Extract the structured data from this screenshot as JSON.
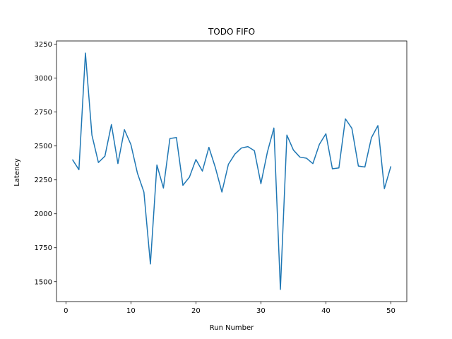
{
  "chart_data": {
    "type": "line",
    "title": "TODO FIFO",
    "xlabel": "Run Number",
    "ylabel": "Latency",
    "xlim": [
      -1.45,
      52.45
    ],
    "ylim": [
      1353,
      3274
    ],
    "xticks": [
      0,
      10,
      20,
      30,
      40,
      50
    ],
    "yticks": [
      1500,
      1750,
      2000,
      2250,
      2500,
      2750,
      3000,
      3250
    ],
    "grid": false,
    "legend": "none",
    "series": [
      {
        "color": "#1f77b4",
        "x": [
          1,
          2,
          3,
          4,
          5,
          6,
          7,
          8,
          9,
          10,
          11,
          12,
          13,
          14,
          15,
          16,
          17,
          18,
          19,
          20,
          21,
          22,
          23,
          24,
          25,
          26,
          27,
          28,
          29,
          30,
          31,
          32,
          33,
          34,
          35,
          36,
          37,
          38,
          39,
          40,
          41,
          42,
          43,
          44,
          45,
          46,
          47,
          48,
          49,
          50
        ],
        "values": [
          2400,
          2325,
          3185,
          2580,
          2378,
          2425,
          2658,
          2370,
          2620,
          2510,
          2300,
          2160,
          1630,
          2360,
          2190,
          2555,
          2562,
          2210,
          2270,
          2400,
          2315,
          2490,
          2340,
          2160,
          2365,
          2440,
          2485,
          2495,
          2465,
          2222,
          2455,
          2632,
          1442,
          2580,
          2470,
          2418,
          2410,
          2370,
          2512,
          2590,
          2332,
          2338,
          2700,
          2630,
          2352,
          2345,
          2560,
          2650,
          2185,
          2350
        ]
      }
    ]
  }
}
